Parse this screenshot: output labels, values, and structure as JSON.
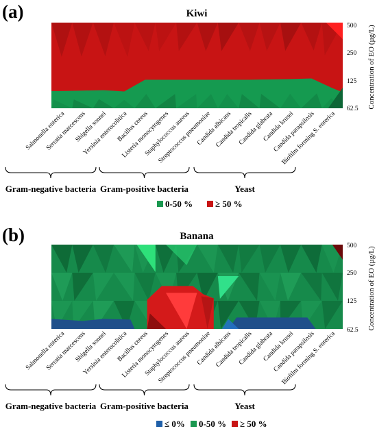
{
  "chart_data": [
    {
      "type": "heatmap",
      "panel_label": "(a)",
      "title": "Kiwi",
      "ylabel": "Concentration of EO (µg/L)",
      "y_ticks": [
        "500",
        "250",
        "125",
        "62.5"
      ],
      "categories": [
        "Salmonella enterica",
        "Serratia marcescens",
        "Shigella sonnei",
        "Yersinia enterocolitica",
        "Bacillus cereus",
        "Listeria monocytogenes",
        "Staphylococcus aureus",
        "Streptococcus pneumoniae",
        "Candida albicans",
        "Candida tropicalis",
        "Candida glabrata",
        "Candida krusei",
        "Candida parapsilosis",
        "Biofilm forming S. enterica"
      ],
      "groups": [
        {
          "label": "Gram-negative bacteria",
          "from": 0,
          "to": 3
        },
        {
          "label": "Gram-positive bacteria",
          "from": 4,
          "to": 7
        },
        {
          "label": "Yeast",
          "from": 8,
          "to": 12
        }
      ],
      "legend": [
        {
          "label": "0-50 %",
          "color": "#1a9850"
        },
        {
          "label": "≥ 50 %",
          "color": "#c81414"
        }
      ],
      "boundary_concentration": [
        95,
        96,
        97,
        94,
        125,
        125,
        125,
        125,
        125,
        125,
        126,
        127,
        129,
        102
      ],
      "top_right_note": "≥ 50 % region above boundary, 0-50 % below"
    },
    {
      "type": "heatmap",
      "panel_label": "(b)",
      "title": "Banana",
      "ylabel": "Concentration of EO (µg/L)",
      "y_ticks": [
        "500",
        "250",
        "125",
        "62.5"
      ],
      "categories": [
        "Salmonella enterica",
        "Serratia marcescens",
        "Shigella sonnei",
        "Yersinia enterocolitica",
        "Bacillus cereus",
        "Listeria monocytogenes",
        "Staphylococcus aureus",
        "Streptococcus pneumoniae",
        "Candida albicans",
        "Candida tropicalis",
        "Candida glabrata",
        "Candida krusei",
        "Candida parapsilosis",
        "Biofilm forming S. enterica"
      ],
      "groups": [
        {
          "label": "Gram-negative bacteria",
          "from": 0,
          "to": 3
        },
        {
          "label": "Gram-positive bacteria",
          "from": 4,
          "to": 7
        },
        {
          "label": "Yeast",
          "from": 8,
          "to": 12
        }
      ],
      "legend": [
        {
          "label": "≤ 0%",
          "color": "#1f5fa8"
        },
        {
          "label": "0-50 %",
          "color": "#1a9850"
        },
        {
          "label": "≥ 50 %",
          "color": "#c81414"
        }
      ],
      "red_region_columns": [
        4,
        5,
        6,
        7
      ],
      "red_region_max_concentration": 180,
      "blue_region_columns": [
        0,
        1,
        2,
        3,
        8,
        9,
        10,
        11
      ],
      "blue_region_max_concentration": 80
    }
  ]
}
